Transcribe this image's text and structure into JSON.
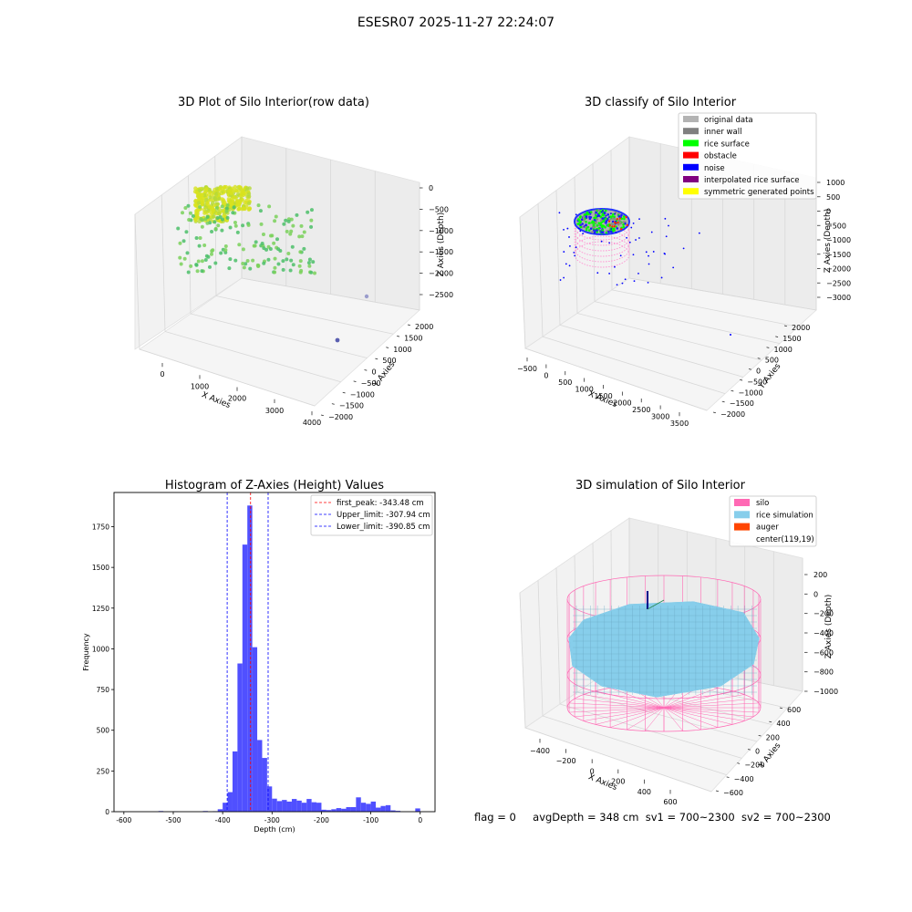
{
  "figure": {
    "suptitle": "ESESR07 2025-11-27 22:24:07",
    "footer": {
      "flag": "flag = 0",
      "avg_depth": "avgDepth = 348 cm",
      "sv1": "sv1 = 700~2300",
      "sv2": "sv2 = 700~2300"
    }
  },
  "chart_data": [
    {
      "type": "scatter",
      "subplot": "top-left",
      "title": "3D Plot of Silo Interior(row data)",
      "xlabel": "X Axies",
      "ylabel": "Y Axies",
      "zlabel": "Z Axies (Depth)",
      "x_ticks": [
        "0",
        "1000",
        "2000",
        "3000",
        "4000"
      ],
      "y_ticks": [
        "−2000",
        "−1500",
        "−1000",
        "−500",
        "0",
        "500",
        "1000",
        "1500",
        "2000"
      ],
      "z_ticks": [
        "0",
        "−500",
        "−1000",
        "−1500",
        "−2000",
        "−2500"
      ],
      "colormap": "viridis",
      "grid": true,
      "points_summary": {
        "dense_cluster": {
          "x_range": [
            0,
            700
          ],
          "y_range": [
            -700,
            700
          ],
          "z_approx": -350,
          "color": "#d6e22c"
        },
        "scattered": {
          "x_range": [
            0,
            2000
          ],
          "z_range": [
            -1500,
            -400
          ],
          "color": "#4fc16b"
        },
        "outliers": [
          {
            "x": 3800,
            "z": -2700,
            "color": "#8a8fc9"
          },
          {
            "x": 3900,
            "z": -2900,
            "color": "#5a5fb0"
          }
        ]
      }
    },
    {
      "type": "scatter",
      "subplot": "top-right",
      "title": "3D classify of Silo Interior",
      "xlabel": "X Axies",
      "ylabel": "Y Axies",
      "zlabel": "Z Axies (Depth)",
      "x_ticks": [
        "−500",
        "0",
        "500",
        "1000",
        "1500",
        "2000",
        "2500",
        "3000",
        "3500"
      ],
      "y_ticks": [
        "−2000",
        "−1500",
        "−1000",
        "−500",
        "0",
        "500",
        "1000",
        "1500",
        "2000"
      ],
      "z_ticks": [
        "1000",
        "500",
        "0",
        "−500",
        "−1000",
        "−1500",
        "−2000",
        "−2500",
        "−3000"
      ],
      "legend_position": "top-right",
      "grid": true,
      "series": [
        {
          "name": "original data",
          "color": "#b3b3b3"
        },
        {
          "name": "inner wall",
          "color": "#808080"
        },
        {
          "name": "rice surface",
          "color": "#00ff00"
        },
        {
          "name": "obstacle",
          "color": "#ff0000"
        },
        {
          "name": "noise",
          "color": "#0000ff"
        },
        {
          "name": "interpolated rice surface",
          "color": "#800080"
        },
        {
          "name": "symmetric generated points",
          "color": "#ffff00"
        }
      ]
    },
    {
      "type": "bar",
      "subplot": "bottom-left",
      "title": "Histogram of Z-Axies (Height) Values",
      "xlabel": "Depth (cm)",
      "ylabel": "Frequency",
      "xlim": [
        -620,
        30
      ],
      "ylim": [
        0,
        1960
      ],
      "x_ticks": [
        -600,
        -500,
        -400,
        -300,
        -200,
        -100,
        0
      ],
      "y_ticks": [
        0,
        250,
        500,
        750,
        1000,
        1250,
        1500,
        1750
      ],
      "bar_color": "#5050ff",
      "legend_position": "top-right",
      "bins": [
        {
          "x0": -530,
          "x1": -520,
          "v": 4
        },
        {
          "x0": -500,
          "x1": -490,
          "v": 2
        },
        {
          "x0": -440,
          "x1": -430,
          "v": 4
        },
        {
          "x0": -420,
          "x1": -410,
          "v": 3
        },
        {
          "x0": -410,
          "x1": -400,
          "v": 15
        },
        {
          "x0": -400,
          "x1": -390,
          "v": 55
        },
        {
          "x0": -390,
          "x1": -380,
          "v": 120
        },
        {
          "x0": -380,
          "x1": -370,
          "v": 370
        },
        {
          "x0": -370,
          "x1": -360,
          "v": 910
        },
        {
          "x0": -360,
          "x1": -350,
          "v": 1640
        },
        {
          "x0": -350,
          "x1": -340,
          "v": 1880
        },
        {
          "x0": -340,
          "x1": -330,
          "v": 1010
        },
        {
          "x0": -330,
          "x1": -320,
          "v": 440
        },
        {
          "x0": -320,
          "x1": -310,
          "v": 330
        },
        {
          "x0": -310,
          "x1": -300,
          "v": 155
        },
        {
          "x0": -300,
          "x1": -290,
          "v": 80
        },
        {
          "x0": -290,
          "x1": -280,
          "v": 65
        },
        {
          "x0": -280,
          "x1": -270,
          "v": 72
        },
        {
          "x0": -270,
          "x1": -260,
          "v": 62
        },
        {
          "x0": -260,
          "x1": -250,
          "v": 78
        },
        {
          "x0": -250,
          "x1": -240,
          "v": 68
        },
        {
          "x0": -240,
          "x1": -230,
          "v": 55
        },
        {
          "x0": -230,
          "x1": -220,
          "v": 78
        },
        {
          "x0": -220,
          "x1": -210,
          "v": 58
        },
        {
          "x0": -210,
          "x1": -200,
          "v": 55
        },
        {
          "x0": -200,
          "x1": -190,
          "v": 12
        },
        {
          "x0": -190,
          "x1": -180,
          "v": 10
        },
        {
          "x0": -180,
          "x1": -170,
          "v": 15
        },
        {
          "x0": -170,
          "x1": -160,
          "v": 22
        },
        {
          "x0": -160,
          "x1": -150,
          "v": 18
        },
        {
          "x0": -150,
          "x1": -140,
          "v": 28
        },
        {
          "x0": -140,
          "x1": -130,
          "v": 28
        },
        {
          "x0": -130,
          "x1": -120,
          "v": 88
        },
        {
          "x0": -120,
          "x1": -110,
          "v": 55
        },
        {
          "x0": -110,
          "x1": -100,
          "v": 48
        },
        {
          "x0": -100,
          "x1": -90,
          "v": 62
        },
        {
          "x0": -90,
          "x1": -80,
          "v": 25
        },
        {
          "x0": -80,
          "x1": -70,
          "v": 35
        },
        {
          "x0": -70,
          "x1": -60,
          "v": 40
        },
        {
          "x0": -60,
          "x1": -50,
          "v": 8
        },
        {
          "x0": -50,
          "x1": -40,
          "v": 5
        },
        {
          "x0": -10,
          "x1": 0,
          "v": 20
        }
      ],
      "lines": [
        {
          "name": "first_peak: -343.48 cm",
          "x": -343.48,
          "color": "#ff0000"
        },
        {
          "name": "Upper_limit: -307.94 cm",
          "x": -307.94,
          "color": "#0000ff"
        },
        {
          "name": "Lower_limit: -390.85 cm",
          "x": -390.85,
          "color": "#0000ff"
        }
      ]
    },
    {
      "type": "scatter",
      "subplot": "bottom-right",
      "title": "3D simulation of Silo Interior",
      "xlabel": "X Axies",
      "ylabel": "Y Axies",
      "zlabel": "Z Axies (Depth)",
      "x_ticks": [
        "−400",
        "−200",
        "0",
        "200",
        "400",
        "600"
      ],
      "y_ticks": [
        "−600",
        "−400",
        "−200",
        "0",
        "200",
        "400",
        "600"
      ],
      "z_ticks": [
        "200",
        "0",
        "−200",
        "−400",
        "−600",
        "−800",
        "−1000"
      ],
      "legend_position": "top-right",
      "grid": true,
      "series": [
        {
          "name": "silo",
          "color": "#ff69b4"
        },
        {
          "name": "rice simulation",
          "color": "#87ceeb"
        },
        {
          "name": "auger",
          "color": "#ff4500"
        },
        {
          "name": "center(119,19)",
          "color": "#ffffff"
        }
      ]
    }
  ]
}
